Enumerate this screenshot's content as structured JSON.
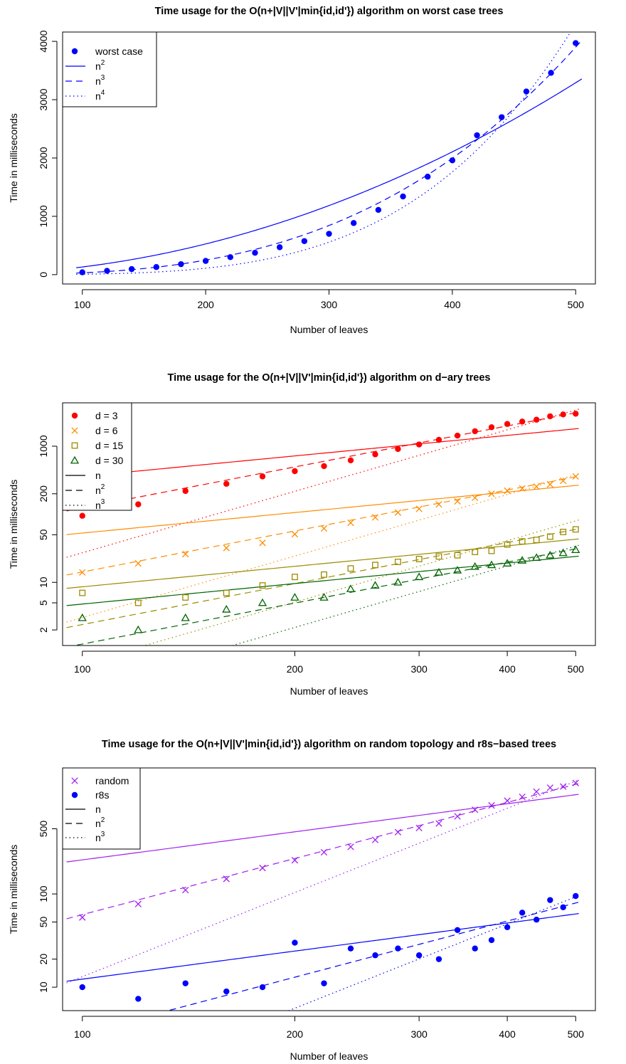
{
  "chart_data": [
    {
      "type": "scatter",
      "title": "Time usage for the O(n+|V||V'|min{id,id'}) algorithm on worst case trees",
      "xlabel": "Number of leaves",
      "ylabel": "Time in milliseconds",
      "xscale": "linear",
      "yscale": "linear",
      "xlim": [
        100,
        500
      ],
      "ylim": [
        0,
        4000
      ],
      "xticks": [
        100,
        200,
        300,
        400,
        500
      ],
      "yticks": [
        0,
        1000,
        2000,
        3000,
        4000
      ],
      "legend_position": "top-left",
      "legend": [
        {
          "label": "worst case",
          "sup": "",
          "kind": "point",
          "shape": "circle",
          "color": "#0000ff"
        },
        {
          "label": "n",
          "sup": "2",
          "kind": "line",
          "dash": "solid",
          "color": "#0000ff"
        },
        {
          "label": "n",
          "sup": "3",
          "kind": "line",
          "dash": "dashed",
          "color": "#0000ff"
        },
        {
          "label": "n",
          "sup": "4",
          "kind": "line",
          "dash": "dotted",
          "color": "#0000ff"
        }
      ],
      "series": [
        {
          "name": "worst case",
          "shape": "circle",
          "color": "#0000ff",
          "x": [
            100,
            120,
            140,
            160,
            180,
            200,
            220,
            240,
            260,
            280,
            300,
            320,
            340,
            360,
            380,
            400,
            420,
            440,
            460,
            480,
            500
          ],
          "y": [
            40,
            65,
            95,
            130,
            180,
            235,
            300,
            375,
            470,
            575,
            700,
            885,
            1110,
            1340,
            1680,
            1960,
            2390,
            2700,
            3140,
            3460,
            3970
          ],
          "fits": [
            {
              "label": "n^2",
              "dash": "solid",
              "curve": "power",
              "exponent": 2,
              "y_at_500": 3290
            },
            {
              "label": "n^3",
              "dash": "dashed",
              "curve": "power",
              "exponent": 3,
              "y_at_500": 3900
            },
            {
              "label": "n^4",
              "dash": "dotted",
              "curve": "power",
              "exponent": 4,
              "y_at_500": 4300
            }
          ]
        }
      ]
    },
    {
      "type": "scatter",
      "title": "Time usage for the O(n+|V||V'|min{id,id'}) algorithm on d−ary trees",
      "xlabel": "Number of leaves",
      "ylabel": "Time in milliseconds",
      "xscale": "log",
      "yscale": "log",
      "xlim": [
        100,
        500
      ],
      "ylim": [
        1.6,
        3200
      ],
      "xticks": [
        100,
        200,
        300,
        400,
        500
      ],
      "yticks": [
        2,
        5,
        10,
        50,
        200,
        1000
      ],
      "legend_position": "top-left",
      "legend": [
        {
          "label": "d = 3",
          "sup": "",
          "kind": "point",
          "shape": "circle",
          "color": "#ff0000"
        },
        {
          "label": "d = 6",
          "sup": "",
          "kind": "point",
          "shape": "cross",
          "color": "#ff8c00"
        },
        {
          "label": "d = 15",
          "sup": "",
          "kind": "point",
          "shape": "square",
          "color": "#9b8b00"
        },
        {
          "label": "d = 30",
          "sup": "",
          "kind": "point",
          "shape": "triangle",
          "color": "#006400"
        },
        {
          "label": "n",
          "sup": "",
          "kind": "line",
          "dash": "solid",
          "color": "#000000"
        },
        {
          "label": "n",
          "sup": "2",
          "kind": "line",
          "dash": "dashed",
          "color": "#000000"
        },
        {
          "label": "n",
          "sup": "3",
          "kind": "line",
          "dash": "dotted",
          "color": "#000000"
        }
      ],
      "series": [
        {
          "name": "d = 3",
          "shape": "circle",
          "color": "#ff0000",
          "x": [
            100,
            120,
            140,
            160,
            180,
            200,
            220,
            240,
            260,
            280,
            300,
            320,
            340,
            360,
            380,
            400,
            420,
            440,
            460,
            480,
            500
          ],
          "y": [
            95,
            140,
            220,
            280,
            360,
            430,
            510,
            620,
            760,
            910,
            1060,
            1240,
            1430,
            1660,
            1900,
            2120,
            2300,
            2450,
            2750,
            2930,
            3000
          ],
          "fits": [
            {
              "label": "n",
              "dash": "solid",
              "curve": "power",
              "exponent": 1,
              "y_at_500": 1800
            },
            {
              "label": "n^2",
              "dash": "dashed",
              "curve": "power",
              "exponent": 2,
              "y_at_500": 3100
            },
            {
              "label": "n^3",
              "dash": "dotted",
              "curve": "power",
              "exponent": 3,
              "y_at_500": 3400
            }
          ]
        },
        {
          "name": "d = 6",
          "shape": "cross",
          "color": "#ff8c00",
          "x": [
            100,
            120,
            140,
            160,
            180,
            200,
            220,
            240,
            260,
            280,
            300,
            320,
            340,
            360,
            380,
            400,
            420,
            440,
            460,
            480,
            500
          ],
          "y": [
            14,
            19,
            26,
            32,
            38,
            51,
            62,
            75,
            90,
            106,
            120,
            140,
            155,
            175,
            200,
            222,
            240,
            255,
            275,
            310,
            360
          ],
          "fits": [
            {
              "label": "n",
              "dash": "solid",
              "curve": "power",
              "exponent": 1,
              "y_at_500": 265
            },
            {
              "label": "n^2",
              "dash": "dashed",
              "curve": "power",
              "exponent": 2,
              "y_at_500": 355
            },
            {
              "label": "n^3",
              "dash": "dotted",
              "curve": "power",
              "exponent": 3,
              "y_at_500": 380
            }
          ]
        },
        {
          "name": "d = 15",
          "shape": "square",
          "color": "#9b8b00",
          "x": [
            100,
            120,
            140,
            160,
            180,
            200,
            220,
            240,
            260,
            280,
            300,
            320,
            340,
            360,
            380,
            400,
            420,
            440,
            460,
            480,
            500
          ],
          "y": [
            7,
            5,
            6,
            7,
            9,
            12,
            13,
            16,
            18,
            20,
            22,
            24,
            25,
            28,
            29,
            36,
            40,
            42,
            47,
            55,
            60
          ],
          "fits": [
            {
              "label": "n",
              "dash": "solid",
              "curve": "power",
              "exponent": 1,
              "y_at_500": 43
            },
            {
              "label": "n^2",
              "dash": "dashed",
              "curve": "power",
              "exponent": 2,
              "y_at_500": 60
            },
            {
              "label": "n^3",
              "dash": "dotted",
              "curve": "power",
              "exponent": 3,
              "y_at_500": 80
            }
          ]
        },
        {
          "name": "d = 30",
          "shape": "triangle",
          "color": "#006400",
          "x": [
            100,
            120,
            140,
            160,
            180,
            200,
            220,
            240,
            260,
            280,
            300,
            320,
            340,
            360,
            380,
            400,
            420,
            440,
            460,
            480,
            500
          ],
          "y": [
            3,
            2,
            3,
            4,
            5,
            6,
            6,
            8,
            9,
            10,
            12,
            14,
            15,
            17,
            18,
            19,
            21,
            23,
            25,
            27,
            30
          ],
          "fits": [
            {
              "label": "n",
              "dash": "solid",
              "curve": "power",
              "exponent": 1,
              "y_at_500": 24
            },
            {
              "label": "n^2",
              "dash": "dashed",
              "curve": "power",
              "exponent": 2,
              "y_at_500": 31
            },
            {
              "label": "n^3",
              "dash": "dotted",
              "curve": "power",
              "exponent": 3,
              "y_at_500": 34
            }
          ]
        }
      ]
    },
    {
      "type": "scatter",
      "title": "Time usage for the O(n+|V||V'|min{id,id'}) algorithm on random topology and r8s−based trees",
      "xlabel": "Number of leaves",
      "ylabel": "Time in milliseconds",
      "xscale": "log",
      "yscale": "log",
      "xlim": [
        100,
        500
      ],
      "ylim": [
        7,
        1800
      ],
      "xticks": [
        100,
        200,
        300,
        400,
        500
      ],
      "yticks": [
        10,
        20,
        50,
        100,
        500
      ],
      "legend_position": "top-left",
      "legend": [
        {
          "label": "random",
          "sup": "",
          "kind": "point",
          "shape": "cross",
          "color": "#a020f0"
        },
        {
          "label": "r8s",
          "sup": "",
          "kind": "point",
          "shape": "circle",
          "color": "#0000ff"
        },
        {
          "label": "n",
          "sup": "",
          "kind": "line",
          "dash": "solid",
          "color": "#000000"
        },
        {
          "label": "n",
          "sup": "2",
          "kind": "line",
          "dash": "dashed",
          "color": "#000000"
        },
        {
          "label": "n",
          "sup": "3",
          "kind": "line",
          "dash": "dotted",
          "color": "#000000"
        }
      ],
      "series": [
        {
          "name": "random",
          "shape": "cross",
          "color": "#a020f0",
          "x": [
            100,
            120,
            140,
            160,
            180,
            200,
            220,
            240,
            260,
            280,
            300,
            320,
            340,
            360,
            380,
            400,
            420,
            440,
            460,
            480,
            500
          ],
          "y": [
            56,
            78,
            110,
            145,
            190,
            230,
            280,
            320,
            380,
            460,
            510,
            570,
            680,
            800,
            890,
            1000,
            1100,
            1250,
            1380,
            1420,
            1550
          ],
          "fits": [
            {
              "label": "n",
              "dash": "solid",
              "curve": "power",
              "exponent": 1,
              "y_at_500": 1160
            },
            {
              "label": "n^2",
              "dash": "dashed",
              "curve": "power",
              "exponent": 2,
              "y_at_500": 1500
            },
            {
              "label": "n^3",
              "dash": "dotted",
              "curve": "power",
              "exponent": 3,
              "y_at_500": 1620
            }
          ]
        },
        {
          "name": "r8s",
          "shape": "circle",
          "color": "#0000ff",
          "x": [
            100,
            120,
            140,
            160,
            180,
            200,
            220,
            240,
            260,
            280,
            300,
            320,
            340,
            360,
            380,
            400,
            420,
            440,
            460,
            480,
            500
          ],
          "y": [
            10,
            7.5,
            11,
            9,
            10,
            30,
            11,
            26,
            22,
            26,
            22,
            20,
            41,
            26,
            32,
            44,
            63,
            53,
            86,
            72,
            95
          ],
          "fits": [
            {
              "label": "n",
              "dash": "solid",
              "curve": "power",
              "exponent": 1,
              "y_at_500": 61
            },
            {
              "label": "n^2",
              "dash": "dashed",
              "curve": "power",
              "exponent": 2,
              "y_at_500": 80
            },
            {
              "label": "n^3",
              "dash": "dotted",
              "curve": "power",
              "exponent": 3,
              "y_at_500": 93
            }
          ]
        }
      ]
    }
  ]
}
